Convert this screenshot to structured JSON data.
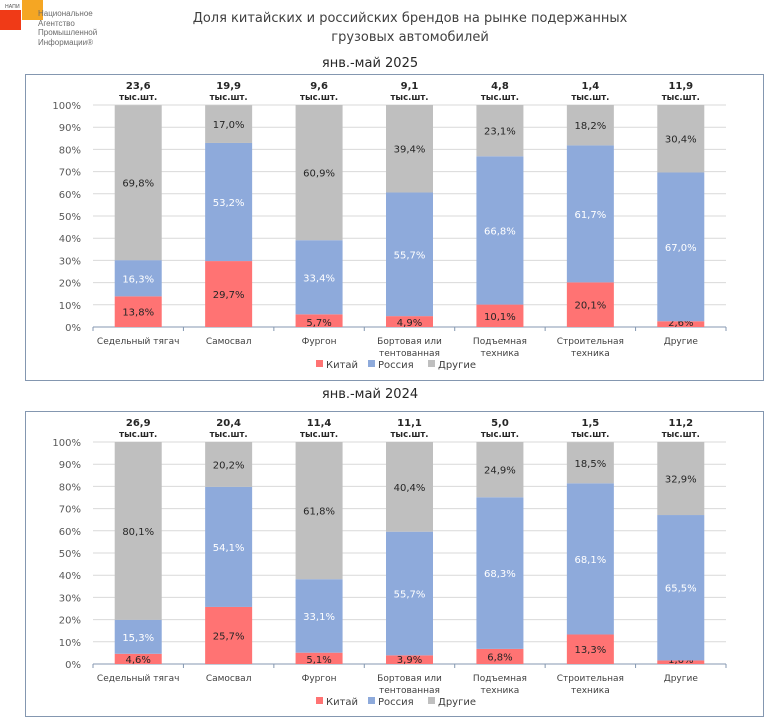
{
  "logo": {
    "abbr": "НАПИ",
    "lines": [
      "Национальное",
      "Агентство",
      "Промышленной",
      "Информации®"
    ]
  },
  "title": "Доля китайских и российских брендов на рынке подержанных грузовых автомобилей",
  "title_lines": [
    "Доля китайских и российских брендов на рынке подержанных",
    "грузовых автомобилей"
  ],
  "colors": {
    "china": "#ff7373",
    "russia": "#8eaadb",
    "other": "#bfbfbf"
  },
  "chart_data": [
    {
      "type": "bar",
      "stacked": true,
      "title": "янв.-май 2025",
      "categories": [
        "Седельный тягач",
        "Самосвал",
        "Фургон",
        "Бортовая или тентованная",
        "Подъемная техника",
        "Строительная техника",
        "Другие"
      ],
      "category_lines": [
        [
          "Седельный тягач"
        ],
        [
          "Самосвал"
        ],
        [
          "Фургон"
        ],
        [
          "Бортовая или",
          "тентованная"
        ],
        [
          "Подъемная",
          "техника"
        ],
        [
          "Строительная",
          "техника"
        ],
        [
          "Другие"
        ]
      ],
      "totals": [
        "23,6",
        "19,9",
        "9,6",
        "9,1",
        "4,8",
        "1,4",
        "11,9"
      ],
      "total_unit": "тыс.шт.",
      "series": [
        {
          "name": "Китай",
          "values": [
            13.8,
            29.7,
            5.7,
            4.9,
            10.1,
            20.1,
            2.6
          ]
        },
        {
          "name": "Россия",
          "values": [
            16.3,
            53.2,
            33.4,
            55.7,
            66.8,
            61.7,
            67.0
          ]
        },
        {
          "name": "Другие",
          "values": [
            69.8,
            17.0,
            60.9,
            39.4,
            23.1,
            18.2,
            30.4
          ]
        }
      ],
      "yticks": [
        "0%",
        "10%",
        "20%",
        "30%",
        "40%",
        "50%",
        "60%",
        "70%",
        "80%",
        "90%",
        "100%"
      ],
      "ylim": [
        0,
        100
      ],
      "grid": true,
      "legend": "bottom",
      "legend_labels": [
        "Китай",
        "Россия",
        "Другие"
      ]
    },
    {
      "type": "bar",
      "stacked": true,
      "title": "янв.-май 2024",
      "categories": [
        "Седельный тягач",
        "Самосвал",
        "Фургон",
        "Бортовая или тентованная",
        "Подъемная техника",
        "Строительная техника",
        "Другие"
      ],
      "category_lines": [
        [
          "Седельный тягач"
        ],
        [
          "Самосвал"
        ],
        [
          "Фургон"
        ],
        [
          "Бортовая или",
          "тентованная"
        ],
        [
          "Подъемная",
          "техника"
        ],
        [
          "Строительная",
          "техника"
        ],
        [
          "Другие"
        ]
      ],
      "totals": [
        "26,9",
        "20,4",
        "11,4",
        "11,1",
        "5,0",
        "1,5",
        "11,2"
      ],
      "total_unit": "тыс.шт.",
      "series": [
        {
          "name": "Китай",
          "values": [
            4.6,
            25.7,
            5.1,
            3.9,
            6.8,
            13.3,
            1.6
          ]
        },
        {
          "name": "Россия",
          "values": [
            15.3,
            54.1,
            33.1,
            55.7,
            68.3,
            68.1,
            65.5
          ]
        },
        {
          "name": "Другие",
          "values": [
            80.1,
            20.2,
            61.8,
            40.4,
            24.9,
            18.5,
            32.9
          ]
        }
      ],
      "yticks": [
        "0%",
        "10%",
        "20%",
        "30%",
        "40%",
        "50%",
        "60%",
        "70%",
        "80%",
        "90%",
        "100%"
      ],
      "ylim": [
        0,
        100
      ],
      "grid": true,
      "legend": "bottom",
      "legend_labels": [
        "Китай",
        "Россия",
        "Другие"
      ]
    }
  ]
}
